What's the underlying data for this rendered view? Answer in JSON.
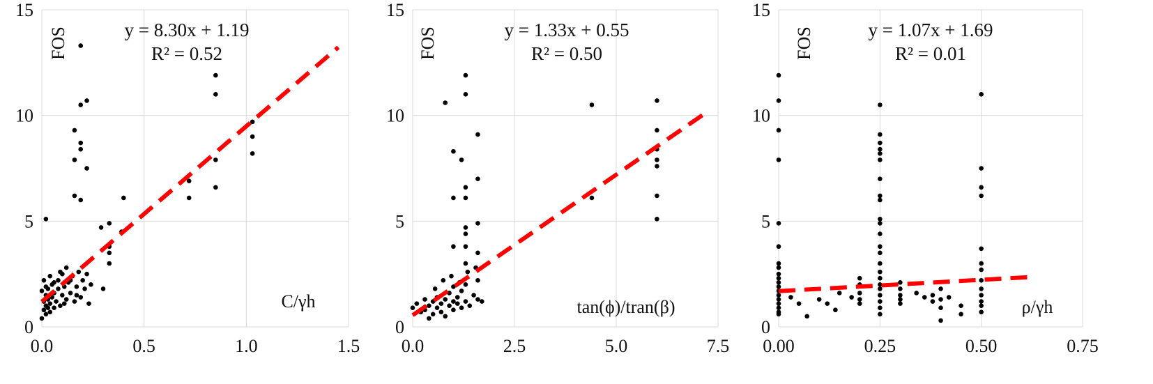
{
  "colors": {
    "points": "#000000",
    "trendline": "#ff0000",
    "grid": "#d9d9d9"
  },
  "chart_data": [
    {
      "type": "scatter",
      "ylabel": "FOS",
      "xlabel": "C/γh",
      "equation": "y = 8.30x + 1.19",
      "r2": "R² = 0.52",
      "xlim": [
        0,
        1.5
      ],
      "ylim": [
        0,
        15
      ],
      "xticks": [
        "0.0",
        "0.5",
        "1.0",
        "1.5"
      ],
      "yticks": [
        "0",
        "5",
        "10",
        "15"
      ],
      "trendline": {
        "slope": 8.3,
        "intercept": 1.19,
        "style": "dashed",
        "x_range": [
          0,
          1.45
        ]
      },
      "grid": "vertical-and-horizontal",
      "points": [
        [
          0.0,
          0.4
        ],
        [
          0.01,
          0.8
        ],
        [
          0.01,
          1.2
        ],
        [
          0.02,
          0.6
        ],
        [
          0.02,
          1.0
        ],
        [
          0.02,
          1.5
        ],
        [
          0.03,
          0.9
        ],
        [
          0.03,
          1.3
        ],
        [
          0.03,
          1.8
        ],
        [
          0.04,
          0.7
        ],
        [
          0.04,
          1.1
        ],
        [
          0.05,
          1.4
        ],
        [
          0.05,
          2.0
        ],
        [
          0.06,
          0.9
        ],
        [
          0.06,
          1.6
        ],
        [
          0.07,
          1.2
        ],
        [
          0.08,
          1.8
        ],
        [
          0.08,
          2.2
        ],
        [
          0.09,
          1.0
        ],
        [
          0.1,
          1.5
        ],
        [
          0.1,
          2.5
        ],
        [
          0.11,
          1.9
        ],
        [
          0.12,
          1.3
        ],
        [
          0.12,
          2.8
        ],
        [
          0.13,
          2.1
        ],
        [
          0.14,
          1.6
        ],
        [
          0.15,
          2.4
        ],
        [
          0.16,
          1.2
        ],
        [
          0.17,
          1.9
        ],
        [
          0.18,
          2.6
        ],
        [
          0.19,
          1.4
        ],
        [
          0.2,
          2.2
        ],
        [
          0.21,
          1.8
        ],
        [
          0.22,
          2.5
        ],
        [
          0.23,
          1.1
        ],
        [
          0.24,
          2.0
        ],
        [
          0.0,
          1.7
        ],
        [
          0.01,
          2.2
        ],
        [
          0.02,
          1.9
        ],
        [
          0.04,
          2.4
        ],
        [
          0.06,
          2.1
        ],
        [
          0.09,
          2.6
        ],
        [
          0.11,
          1.1
        ],
        [
          0.14,
          2.2
        ],
        [
          0.17,
          1.5
        ],
        [
          0.02,
          5.1
        ],
        [
          0.16,
          9.3
        ],
        [
          0.16,
          7.9
        ],
        [
          0.16,
          6.2
        ],
        [
          0.19,
          6.0
        ],
        [
          0.19,
          8.7
        ],
        [
          0.19,
          8.4
        ],
        [
          0.19,
          10.5
        ],
        [
          0.22,
          10.7
        ],
        [
          0.22,
          7.5
        ],
        [
          0.19,
          13.3
        ],
        [
          0.29,
          4.7
        ],
        [
          0.33,
          4.9
        ],
        [
          0.33,
          3.8
        ],
        [
          0.33,
          3.5
        ],
        [
          0.33,
          3.0
        ],
        [
          0.3,
          1.8
        ],
        [
          0.4,
          6.1
        ],
        [
          0.39,
          4.5
        ],
        [
          0.72,
          6.9
        ],
        [
          0.72,
          6.1
        ],
        [
          0.85,
          11.9
        ],
        [
          0.85,
          11.0
        ],
        [
          0.85,
          7.9
        ],
        [
          0.85,
          6.6
        ],
        [
          1.03,
          9.7
        ],
        [
          1.03,
          9.0
        ],
        [
          1.03,
          8.2
        ]
      ]
    },
    {
      "type": "scatter",
      "ylabel": "FOS",
      "xlabel": "tan(ϕ)/tran(β)",
      "equation": "y = 1.33x + 0.55",
      "r2": "R² = 0.50",
      "xlim": [
        0,
        7.5
      ],
      "ylim": [
        0,
        15
      ],
      "xticks": [
        "0.0",
        "2.5",
        "5.0",
        "7.5"
      ],
      "yticks": [
        "0",
        "5",
        "10",
        "15"
      ],
      "trendline": {
        "slope": 1.33,
        "intercept": 0.55,
        "style": "dashed",
        "x_range": [
          0,
          7.2
        ]
      },
      "grid": "vertical-and-horizontal",
      "points": [
        [
          0.0,
          0.9
        ],
        [
          0.1,
          1.1
        ],
        [
          0.2,
          0.7
        ],
        [
          0.3,
          0.8
        ],
        [
          0.4,
          1.0
        ],
        [
          0.5,
          0.6
        ],
        [
          0.5,
          1.2
        ],
        [
          0.6,
          0.9
        ],
        [
          0.6,
          1.4
        ],
        [
          0.7,
          0.7
        ],
        [
          0.7,
          1.1
        ],
        [
          0.8,
          1.3
        ],
        [
          0.8,
          0.5
        ],
        [
          0.9,
          1.0
        ],
        [
          0.9,
          1.6
        ],
        [
          1.0,
          0.8
        ],
        [
          1.0,
          1.2
        ],
        [
          1.0,
          1.9
        ],
        [
          1.1,
          1.1
        ],
        [
          1.1,
          1.4
        ],
        [
          1.2,
          0.9
        ],
        [
          1.2,
          1.7
        ],
        [
          1.3,
          1.2
        ],
        [
          1.3,
          2.0
        ],
        [
          1.4,
          1.0
        ],
        [
          1.5,
          1.5
        ],
        [
          1.6,
          1.3
        ],
        [
          1.6,
          2.2
        ],
        [
          1.7,
          1.2
        ],
        [
          0.4,
          0.4
        ],
        [
          0.3,
          1.3
        ],
        [
          0.55,
          1.8
        ],
        [
          0.75,
          2.2
        ],
        [
          0.95,
          2.4
        ],
        [
          1.15,
          2.1
        ],
        [
          1.35,
          2.6
        ],
        [
          1.55,
          2.8
        ],
        [
          0.8,
          10.6
        ],
        [
          1.0,
          8.3
        ],
        [
          1.0,
          6.1
        ],
        [
          1.0,
          3.8
        ],
        [
          1.2,
          7.9
        ],
        [
          1.3,
          11.9
        ],
        [
          1.3,
          11.0
        ],
        [
          1.3,
          6.6
        ],
        [
          1.3,
          6.1
        ],
        [
          1.3,
          4.7
        ],
        [
          1.3,
          4.4
        ],
        [
          1.3,
          3.8
        ],
        [
          1.3,
          3.0
        ],
        [
          1.6,
          9.1
        ],
        [
          1.6,
          7.0
        ],
        [
          1.6,
          4.9
        ],
        [
          1.6,
          3.5
        ],
        [
          4.4,
          10.5
        ],
        [
          4.4,
          6.1
        ],
        [
          6.0,
          10.7
        ],
        [
          6.0,
          9.3
        ],
        [
          6.0,
          8.4
        ],
        [
          6.0,
          7.9
        ],
        [
          6.0,
          7.6
        ],
        [
          6.0,
          6.2
        ],
        [
          6.0,
          5.1
        ]
      ]
    },
    {
      "type": "scatter",
      "ylabel": "FOS",
      "xlabel": "ρ/γh",
      "equation": "y = 1.07x + 1.69",
      "r2": "R² = 0.01",
      "xlim": [
        0,
        0.75
      ],
      "ylim": [
        0,
        15
      ],
      "xticks": [
        "0.00",
        "0.25",
        "0.50",
        "0.75"
      ],
      "yticks": [
        "0",
        "5",
        "10",
        "15"
      ],
      "trendline": {
        "slope": 1.07,
        "intercept": 1.69,
        "style": "dashed",
        "x_range": [
          0,
          0.62
        ]
      },
      "grid": "vertical-and-horizontal",
      "points": [
        [
          0.0,
          11.9
        ],
        [
          0.0,
          10.7
        ],
        [
          0.0,
          9.3
        ],
        [
          0.0,
          7.9
        ],
        [
          0.0,
          4.9
        ],
        [
          0.0,
          3.8
        ],
        [
          0.0,
          3.0
        ],
        [
          0.0,
          2.8
        ],
        [
          0.0,
          2.5
        ],
        [
          0.0,
          2.3
        ],
        [
          0.0,
          2.1
        ],
        [
          0.0,
          1.9
        ],
        [
          0.0,
          1.7
        ],
        [
          0.0,
          1.5
        ],
        [
          0.0,
          1.3
        ],
        [
          0.0,
          1.1
        ],
        [
          0.0,
          0.9
        ],
        [
          0.0,
          0.7
        ],
        [
          0.0,
          0.6
        ],
        [
          0.03,
          1.4
        ],
        [
          0.05,
          1.1
        ],
        [
          0.07,
          0.5
        ],
        [
          0.1,
          1.3
        ],
        [
          0.12,
          1.1
        ],
        [
          0.14,
          0.8
        ],
        [
          0.15,
          1.6
        ],
        [
          0.18,
          1.4
        ],
        [
          0.2,
          2.3
        ],
        [
          0.2,
          2.0
        ],
        [
          0.2,
          1.6
        ],
        [
          0.2,
          1.3
        ],
        [
          0.2,
          1.1
        ],
        [
          0.25,
          10.5
        ],
        [
          0.25,
          9.1
        ],
        [
          0.25,
          8.7
        ],
        [
          0.25,
          8.4
        ],
        [
          0.25,
          8.2
        ],
        [
          0.25,
          7.9
        ],
        [
          0.25,
          7.0
        ],
        [
          0.25,
          6.2
        ],
        [
          0.25,
          6.0
        ],
        [
          0.25,
          5.1
        ],
        [
          0.25,
          4.9
        ],
        [
          0.25,
          4.4
        ],
        [
          0.25,
          3.8
        ],
        [
          0.25,
          3.5
        ],
        [
          0.25,
          3.0
        ],
        [
          0.25,
          2.6
        ],
        [
          0.25,
          2.3
        ],
        [
          0.25,
          2.0
        ],
        [
          0.25,
          1.8
        ],
        [
          0.25,
          1.5
        ],
        [
          0.25,
          1.2
        ],
        [
          0.25,
          0.9
        ],
        [
          0.25,
          0.6
        ],
        [
          0.3,
          2.1
        ],
        [
          0.3,
          1.8
        ],
        [
          0.3,
          1.5
        ],
        [
          0.3,
          1.3
        ],
        [
          0.3,
          1.1
        ],
        [
          0.34,
          1.6
        ],
        [
          0.36,
          1.4
        ],
        [
          0.38,
          1.2
        ],
        [
          0.38,
          1.5
        ],
        [
          0.4,
          1.8
        ],
        [
          0.4,
          1.3
        ],
        [
          0.4,
          0.9
        ],
        [
          0.4,
          0.3
        ],
        [
          0.42,
          1.4
        ],
        [
          0.45,
          1.0
        ],
        [
          0.45,
          0.6
        ],
        [
          0.5,
          11.0
        ],
        [
          0.5,
          7.5
        ],
        [
          0.5,
          6.6
        ],
        [
          0.5,
          6.2
        ],
        [
          0.5,
          3.7
        ],
        [
          0.5,
          3.0
        ],
        [
          0.5,
          2.7
        ],
        [
          0.5,
          2.2
        ],
        [
          0.5,
          1.8
        ],
        [
          0.5,
          1.5
        ],
        [
          0.5,
          1.2
        ],
        [
          0.5,
          1.0
        ],
        [
          0.5,
          0.7
        ]
      ]
    }
  ]
}
